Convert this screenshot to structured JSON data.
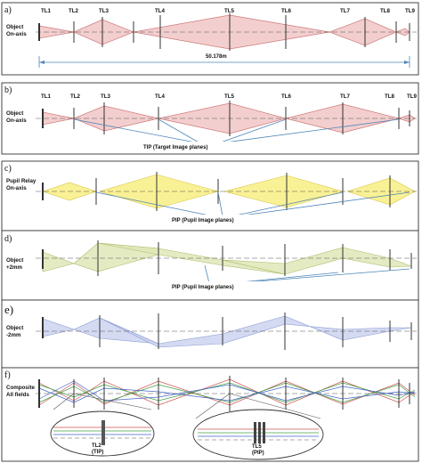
{
  "panels": [
    {
      "label": "a)",
      "object_label": [
        "Object",
        "On-axis"
      ],
      "lens_labels": [
        "TL1",
        "TL2",
        "TL3",
        "TL4",
        "TL5",
        "TL6",
        "TL7",
        "TL8",
        "TL9"
      ],
      "dimension": "50.178m",
      "color": "#d98a8a"
    },
    {
      "label": "b)",
      "object_label": [
        "Object",
        "On-axis"
      ],
      "lens_labels": [
        "TL1",
        "TL2",
        "TL3",
        "TL4",
        "TL5",
        "TL6",
        "TL7",
        "TL8",
        "TL9"
      ],
      "annotation": "TIP (Target Image planes)",
      "color": "#d98a8a"
    },
    {
      "label": "c)",
      "object_label": [
        "Pupil Relay",
        "On-axis"
      ],
      "annotation": "PIP (Pupil Image planes)",
      "color": "#f2e24a"
    },
    {
      "label": "d)",
      "object_label": [
        "Object",
        "+2mm"
      ],
      "annotation": "PIP (Pupil Image planes)",
      "color": "#b9cf7a"
    },
    {
      "label": "e)",
      "object_label": [
        "Object",
        "-2mm"
      ],
      "color": "#8ea0d8"
    },
    {
      "label": "f)",
      "object_label": [
        "Composite",
        "All fields"
      ],
      "insets": [
        [
          "TL2",
          "(TIP)"
        ],
        [
          "TL5",
          "(PIP)"
        ]
      ]
    }
  ]
}
